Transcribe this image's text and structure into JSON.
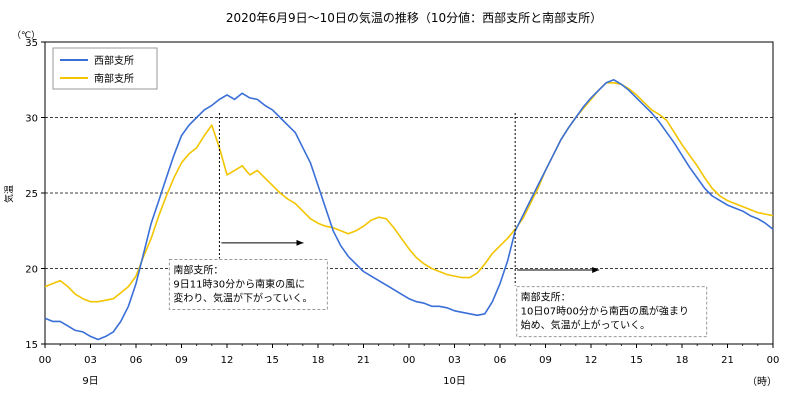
{
  "chart_data": {
    "type": "line",
    "title": "2020年6月9日～10日の気温の推移（10分値：西部支所と南部支所）",
    "ylabel": "気温",
    "y_unit": "（℃）",
    "x_unit": "（時）",
    "ylim": [
      15,
      35
    ],
    "yticks": [
      15,
      20,
      25,
      30,
      35
    ],
    "xlim": [
      0,
      48
    ],
    "xtick_labels": [
      "00",
      "03",
      "06",
      "09",
      "12",
      "15",
      "18",
      "21",
      "00",
      "03",
      "06",
      "09",
      "12",
      "15",
      "18",
      "21",
      "00"
    ],
    "day_labels": [
      {
        "label": "9日",
        "x": 3
      },
      {
        "label": "10日",
        "x": 27
      }
    ],
    "grid": "horizontal-dashed",
    "legend": "top-left",
    "series": [
      {
        "name": "西部支所",
        "color": "#3a6fd8",
        "points": [
          [
            0,
            16.7
          ],
          [
            0.5,
            16.5
          ],
          [
            1,
            16.5
          ],
          [
            1.5,
            16.2
          ],
          [
            2,
            15.9
          ],
          [
            2.5,
            15.8
          ],
          [
            3,
            15.5
          ],
          [
            3.5,
            15.3
          ],
          [
            4,
            15.5
          ],
          [
            4.5,
            15.8
          ],
          [
            5,
            16.5
          ],
          [
            5.5,
            17.5
          ],
          [
            6,
            19.0
          ],
          [
            6.5,
            21.0
          ],
          [
            7,
            23.0
          ],
          [
            7.5,
            24.5
          ],
          [
            8,
            26.0
          ],
          [
            8.5,
            27.5
          ],
          [
            9,
            28.8
          ],
          [
            9.5,
            29.5
          ],
          [
            10,
            30.0
          ],
          [
            10.5,
            30.5
          ],
          [
            11,
            30.8
          ],
          [
            11.5,
            31.2
          ],
          [
            12,
            31.5
          ],
          [
            12.5,
            31.2
          ],
          [
            13,
            31.6
          ],
          [
            13.5,
            31.3
          ],
          [
            14,
            31.2
          ],
          [
            14.5,
            30.8
          ],
          [
            15,
            30.5
          ],
          [
            15.5,
            30.0
          ],
          [
            16,
            29.5
          ],
          [
            16.5,
            29.0
          ],
          [
            17,
            28.0
          ],
          [
            17.5,
            27.0
          ],
          [
            18,
            25.5
          ],
          [
            18.5,
            24.0
          ],
          [
            19,
            22.5
          ],
          [
            19.5,
            21.5
          ],
          [
            20,
            20.8
          ],
          [
            20.5,
            20.3
          ],
          [
            21,
            19.8
          ],
          [
            21.5,
            19.5
          ],
          [
            22,
            19.2
          ],
          [
            22.5,
            18.9
          ],
          [
            23,
            18.6
          ],
          [
            23.5,
            18.3
          ],
          [
            24,
            18.0
          ],
          [
            24.5,
            17.8
          ],
          [
            25,
            17.7
          ],
          [
            25.5,
            17.5
          ],
          [
            26,
            17.5
          ],
          [
            26.5,
            17.4
          ],
          [
            27,
            17.2
          ],
          [
            27.5,
            17.1
          ],
          [
            28,
            17.0
          ],
          [
            28.5,
            16.9
          ],
          [
            29,
            17.0
          ],
          [
            29.5,
            17.8
          ],
          [
            30,
            19.0
          ],
          [
            30.5,
            20.5
          ],
          [
            31,
            22.5
          ],
          [
            31.5,
            23.5
          ],
          [
            32,
            24.5
          ],
          [
            32.5,
            25.5
          ],
          [
            33,
            26.5
          ],
          [
            33.5,
            27.5
          ],
          [
            34,
            28.5
          ],
          [
            34.5,
            29.3
          ],
          [
            35,
            30.0
          ],
          [
            35.5,
            30.7
          ],
          [
            36,
            31.3
          ],
          [
            36.5,
            31.8
          ],
          [
            37,
            32.3
          ],
          [
            37.5,
            32.5
          ],
          [
            38,
            32.2
          ],
          [
            38.5,
            31.8
          ],
          [
            39,
            31.3
          ],
          [
            39.5,
            30.8
          ],
          [
            40,
            30.3
          ],
          [
            40.5,
            29.7
          ],
          [
            41,
            29.0
          ],
          [
            41.5,
            28.3
          ],
          [
            42,
            27.5
          ],
          [
            42.5,
            26.7
          ],
          [
            43,
            26.0
          ],
          [
            43.5,
            25.3
          ],
          [
            44,
            24.8
          ],
          [
            44.5,
            24.5
          ],
          [
            45,
            24.2
          ],
          [
            45.5,
            24.0
          ],
          [
            46,
            23.8
          ],
          [
            46.5,
            23.5
          ],
          [
            47,
            23.3
          ],
          [
            47.5,
            23.0
          ],
          [
            48,
            22.6
          ]
        ]
      },
      {
        "name": "南部支所",
        "color": "#f2c500",
        "points": [
          [
            0,
            18.8
          ],
          [
            0.5,
            19.0
          ],
          [
            1,
            19.2
          ],
          [
            1.5,
            18.8
          ],
          [
            2,
            18.3
          ],
          [
            2.5,
            18.0
          ],
          [
            3,
            17.8
          ],
          [
            3.5,
            17.8
          ],
          [
            4,
            17.9
          ],
          [
            4.5,
            18.0
          ],
          [
            5,
            18.4
          ],
          [
            5.5,
            18.8
          ],
          [
            6,
            19.5
          ],
          [
            6.5,
            20.8
          ],
          [
            7,
            22.0
          ],
          [
            7.5,
            23.5
          ],
          [
            8,
            24.8
          ],
          [
            8.5,
            26.0
          ],
          [
            9,
            27.0
          ],
          [
            9.5,
            27.6
          ],
          [
            10,
            28.0
          ],
          [
            10.5,
            28.8
          ],
          [
            11,
            29.5
          ],
          [
            11.5,
            28.0
          ],
          [
            12,
            26.2
          ],
          [
            12.5,
            26.5
          ],
          [
            13,
            26.8
          ],
          [
            13.5,
            26.2
          ],
          [
            14,
            26.5
          ],
          [
            14.5,
            26.0
          ],
          [
            15,
            25.5
          ],
          [
            15.5,
            25.0
          ],
          [
            16,
            24.6
          ],
          [
            16.5,
            24.3
          ],
          [
            17,
            23.8
          ],
          [
            17.5,
            23.3
          ],
          [
            18,
            23.0
          ],
          [
            18.5,
            22.8
          ],
          [
            19,
            22.7
          ],
          [
            19.5,
            22.5
          ],
          [
            20,
            22.3
          ],
          [
            20.5,
            22.5
          ],
          [
            21,
            22.8
          ],
          [
            21.5,
            23.2
          ],
          [
            22,
            23.4
          ],
          [
            22.5,
            23.3
          ],
          [
            23,
            22.7
          ],
          [
            23.5,
            22.0
          ],
          [
            24,
            21.3
          ],
          [
            24.5,
            20.7
          ],
          [
            25,
            20.3
          ],
          [
            25.5,
            20.0
          ],
          [
            26,
            19.8
          ],
          [
            26.5,
            19.6
          ],
          [
            27,
            19.5
          ],
          [
            27.5,
            19.4
          ],
          [
            28,
            19.4
          ],
          [
            28.5,
            19.7
          ],
          [
            29,
            20.3
          ],
          [
            29.5,
            21.0
          ],
          [
            30,
            21.5
          ],
          [
            30.5,
            22.0
          ],
          [
            31,
            22.6
          ],
          [
            31.5,
            23.3
          ],
          [
            32,
            24.3
          ],
          [
            32.5,
            25.3
          ],
          [
            33,
            26.5
          ],
          [
            33.5,
            27.5
          ],
          [
            34,
            28.5
          ],
          [
            34.5,
            29.3
          ],
          [
            35,
            30.0
          ],
          [
            35.5,
            30.6
          ],
          [
            36,
            31.2
          ],
          [
            36.5,
            31.8
          ],
          [
            37,
            32.3
          ],
          [
            37.5,
            32.3
          ],
          [
            38,
            32.2
          ],
          [
            38.5,
            31.9
          ],
          [
            39,
            31.5
          ],
          [
            39.5,
            31.0
          ],
          [
            40,
            30.5
          ],
          [
            40.5,
            30.2
          ],
          [
            41,
            29.8
          ],
          [
            41.5,
            29.0
          ],
          [
            42,
            28.2
          ],
          [
            42.5,
            27.5
          ],
          [
            43,
            26.8
          ],
          [
            43.5,
            26.0
          ],
          [
            44,
            25.3
          ],
          [
            44.5,
            24.8
          ],
          [
            45,
            24.5
          ],
          [
            45.5,
            24.3
          ],
          [
            46,
            24.1
          ],
          [
            46.5,
            23.9
          ],
          [
            47,
            23.7
          ],
          [
            47.5,
            23.6
          ],
          [
            48,
            23.5
          ]
        ]
      }
    ],
    "annotations": [
      {
        "id": "south-wind",
        "lines": [
          "南部支所：",
          "9日11時30分から南東の風に",
          "変わり、気温が下がっていく。"
        ],
        "event_x": 11.5,
        "arrow_y": 21.7,
        "box_anchor": {
          "x": 8.2,
          "y": 20.6
        }
      },
      {
        "id": "southwest-wind",
        "lines": [
          "南部支所：",
          "10日07時00分から南西の風が強まり",
          "始め、気温が上がっていく。"
        ],
        "event_x": 31.0,
        "arrow_y": 19.9,
        "box_anchor": {
          "x": 31.1,
          "y": 18.8
        }
      }
    ]
  }
}
